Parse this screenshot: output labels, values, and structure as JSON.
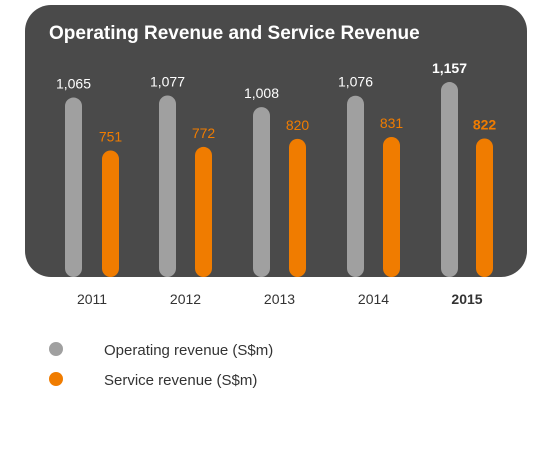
{
  "chart_data": {
    "type": "bar",
    "title": "Operating Revenue and Service Revenue",
    "categories": [
      "2011",
      "2012",
      "2013",
      "2014",
      "2015"
    ],
    "highlight_category": "2015",
    "series": [
      {
        "name": "Operating revenue (S$m)",
        "color": "#a0a0a0",
        "values": [
          1065,
          1077,
          1008,
          1076,
          1157
        ]
      },
      {
        "name": "Service revenue (S$m)",
        "color": "#f07c00",
        "values": [
          751,
          772,
          820,
          831,
          822
        ]
      }
    ],
    "value_labels": {
      "operating": [
        "1,065",
        "1,077",
        "1,008",
        "1,076",
        "1,157"
      ],
      "service": [
        "751",
        "772",
        "820",
        "831",
        "822"
      ]
    },
    "legend_position": "bottom-left",
    "grid": false
  }
}
